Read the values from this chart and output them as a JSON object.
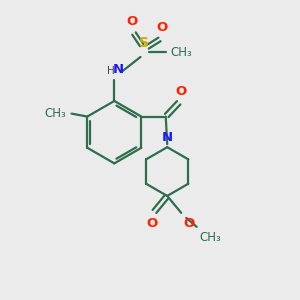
{
  "bg_color": "#ebebeb",
  "bond_color": "#2d6e4e",
  "N_color": "#1a1aff",
  "O_color": "#ff2200",
  "S_color": "#ccaa00",
  "line_width": 1.6,
  "font_size": 8.5,
  "fig_size": [
    3.0,
    3.0
  ],
  "dpi": 100,
  "xlim": [
    0,
    10
  ],
  "ylim": [
    0,
    10
  ]
}
